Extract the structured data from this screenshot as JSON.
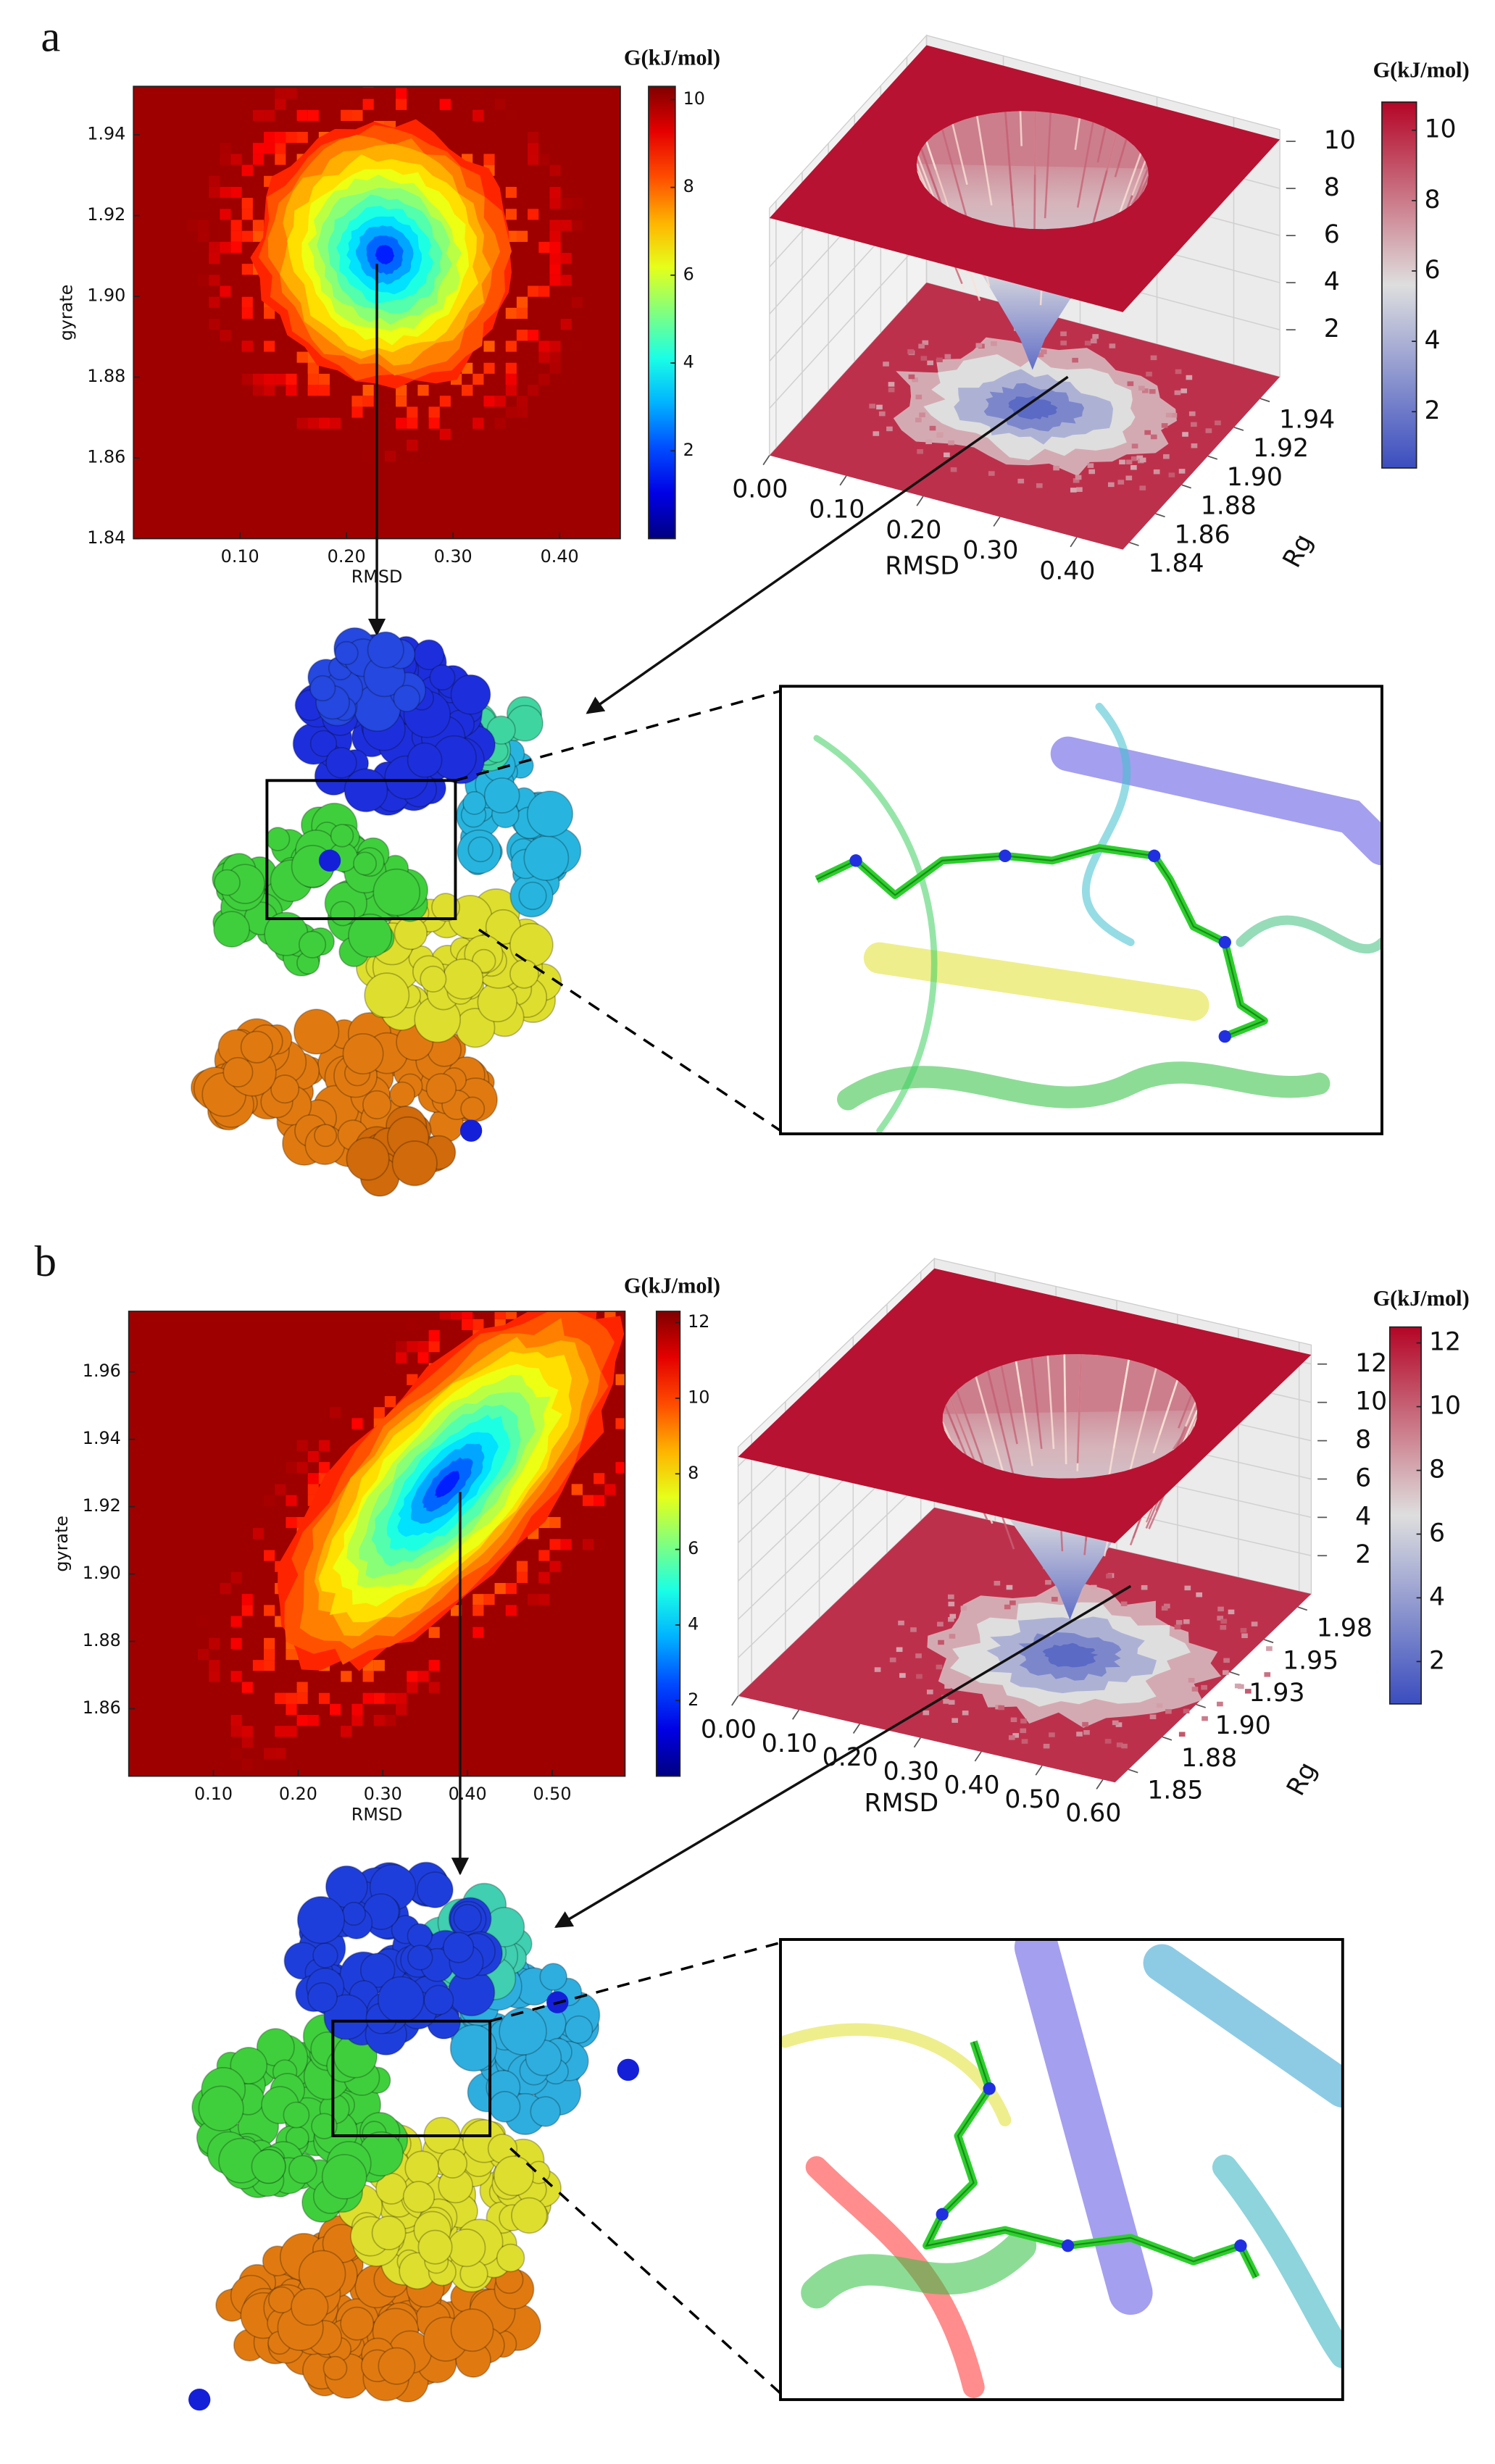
{
  "panel_labels": [
    "a",
    "b"
  ],
  "chart_data": [
    {
      "type": "heatmap",
      "xlabel": "RMSD",
      "ylabel": "gyrate",
      "colorbar_label": "G(kJ/mol)",
      "colormap": "jet",
      "xlim": [
        0,
        0.457
      ],
      "ylim": [
        1.84,
        1.952
      ],
      "xticks": [
        {
          "value": 0.1,
          "label": "0.10"
        },
        {
          "value": 0.2,
          "label": "0.20"
        },
        {
          "value": 0.3,
          "label": "0.30"
        },
        {
          "value": 0.4,
          "label": "0.40"
        }
      ],
      "yticks": [
        1.84,
        1.86,
        1.88,
        {
          "value": 1.9,
          "label": "1.90"
        },
        1.92,
        1.94
      ],
      "clim": [
        0,
        10.3
      ],
      "cticks": [
        2,
        4,
        6,
        8,
        10
      ]
    },
    {
      "type": "surface3d",
      "xlabel": "RMSD",
      "ylabel": "Rg",
      "colorbar_label": "G(kJ/mol)",
      "colormap": "coolwarm",
      "xlim": [
        0,
        0.46
      ],
      "ylim": [
        1.835,
        1.955
      ],
      "zlim": [
        0,
        10.5
      ],
      "xticks": [
        {
          "value": 0,
          "label": "0.00"
        },
        {
          "value": 0.1,
          "label": "0.10"
        },
        {
          "value": 0.2,
          "label": "0.20"
        },
        {
          "value": 0.3,
          "label": "0.30"
        },
        {
          "value": 0.4,
          "label": "0.40"
        }
      ],
      "yticks": [
        1.84,
        1.86,
        1.88,
        {
          "value": 1.9,
          "label": "1.90"
        },
        1.92,
        1.94
      ],
      "zticks": [
        2,
        4,
        6,
        8,
        10
      ],
      "clim": [
        0.4,
        10.8
      ],
      "cticks": [
        2,
        4,
        6,
        8,
        10
      ]
    },
    {
      "type": "heatmap",
      "xlabel": "RMSD",
      "ylabel": "gyrate",
      "colorbar_label": "G(kJ/mol)",
      "colormap": "jet",
      "xlim": [
        0,
        0.586
      ],
      "ylim": [
        1.84,
        1.978
      ],
      "xticks": [
        {
          "value": 0.1,
          "label": "0.10"
        },
        {
          "value": 0.2,
          "label": "0.20"
        },
        {
          "value": 0.3,
          "label": "0.30"
        },
        {
          "value": 0.4,
          "label": "0.40"
        },
        {
          "value": 0.5,
          "label": "0.50"
        }
      ],
      "yticks": [
        1.86,
        1.88,
        {
          "value": 1.9,
          "label": "1.90"
        },
        1.92,
        1.94,
        1.96
      ],
      "clim": [
        0,
        12.3
      ],
      "cticks": [
        2,
        4,
        6,
        8,
        10,
        12
      ]
    },
    {
      "type": "surface3d",
      "xlabel": "RMSD",
      "ylabel": "Rg",
      "colorbar_label": "G(kJ/mol)",
      "colormap": "coolwarm",
      "xlim": [
        0,
        0.62
      ],
      "ylim": [
        1.84,
        1.985
      ],
      "zlim": [
        0,
        13
      ],
      "xticks": [
        {
          "value": 0,
          "label": "0.00"
        },
        {
          "value": 0.1,
          "label": "0.10"
        },
        {
          "value": 0.2,
          "label": "0.20"
        },
        {
          "value": 0.3,
          "label": "0.30"
        },
        {
          "value": 0.4,
          "label": "0.40"
        },
        {
          "value": 0.5,
          "label": "0.50"
        },
        {
          "value": 0.6,
          "label": "0.60"
        }
      ],
      "yticks": [
        1.85,
        {
          "value": 1.875,
          "label": "1.88"
        },
        {
          "value": 1.9,
          "label": "1.90"
        },
        {
          "value": 1.925,
          "label": "1.93"
        },
        1.95,
        {
          "value": 1.975,
          "label": "1.98"
        }
      ],
      "zticks": [
        2,
        4,
        6,
        8,
        10,
        12
      ],
      "clim": [
        0.67,
        12.5
      ],
      "cticks": [
        2,
        4,
        6,
        8,
        10,
        12
      ]
    }
  ]
}
